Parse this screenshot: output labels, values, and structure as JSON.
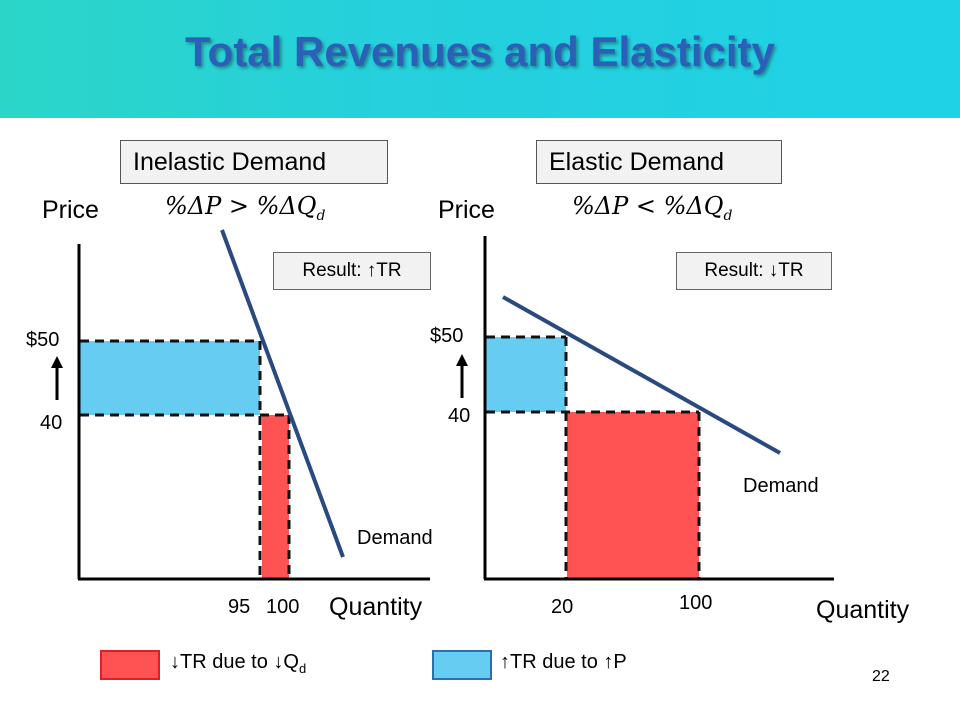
{
  "title": "Total Revenues and Elasticity",
  "left": {
    "heading": "Inelastic Demand",
    "formula": "%ΔP > %ΔQ",
    "formula_sub": "d",
    "axis_y": "Price",
    "axis_x": "Quantity",
    "result": "Result: ↑TR",
    "price_high": "$50",
    "price_low": "40",
    "qty_labels": [
      "95",
      "100"
    ],
    "curve_label": "Demand"
  },
  "right": {
    "heading": "Elastic Demand",
    "formula": "%ΔP < %ΔQ",
    "formula_sub": "d",
    "axis_y": "Price",
    "axis_x": "Quantity",
    "result": "Result: ↓TR",
    "price_high": "$50",
    "price_low": "40",
    "qty_labels": [
      "20",
      "100"
    ],
    "curve_label": "Demand"
  },
  "legend": {
    "loss_label": "↓TR due to ↓Q",
    "loss_sub": "d",
    "gain_label": "↑TR due to ↑P"
  },
  "slide_number": "22",
  "colors": {
    "gain": "#66ccf2",
    "loss": "#ff5252",
    "curve": "#2a4a7f"
  }
}
